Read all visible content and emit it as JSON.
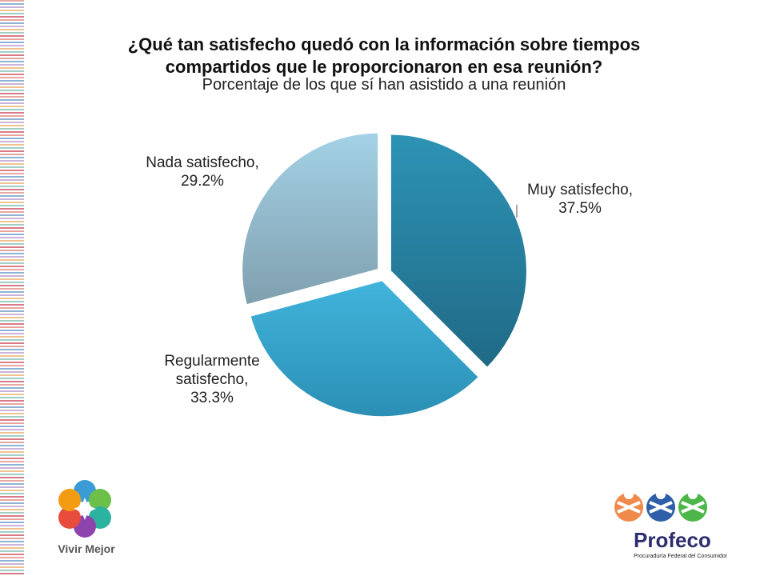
{
  "title_line1": "¿Qué tan satisfecho quedó con la información sobre tiempos",
  "title_line2": "compartidos  que le proporcionaron en esa reunión?",
  "subtitle": "Porcentaje de los que sí han asistido a una reunión",
  "chart_data": {
    "type": "pie",
    "slices": [
      {
        "label_lines": [
          "Muy satisfecho,",
          "37.5%"
        ],
        "category": "Muy satisfecho",
        "value": 37.5,
        "color": "#2a7f9d"
      },
      {
        "label_lines": [
          "Regularmente",
          "satisfecho,",
          "33.3%"
        ],
        "category": "Regularmente satisfecho",
        "value": 33.3,
        "color": "#39a9cf"
      },
      {
        "label_lines": [
          "Nada satisfecho,",
          "29.2%"
        ],
        "category": "Nada satisfecho",
        "value": 29.2,
        "color": "#8db6c9"
      }
    ],
    "exploded": true,
    "legend": "none"
  },
  "logos": {
    "left_text": "Vivir Mejor",
    "right_brand": "Profeco",
    "right_sub": "Procuraduría Federal del Consumidor"
  },
  "colors": {
    "accent": "#2a7f9d",
    "brand": "#2e2e6e"
  }
}
